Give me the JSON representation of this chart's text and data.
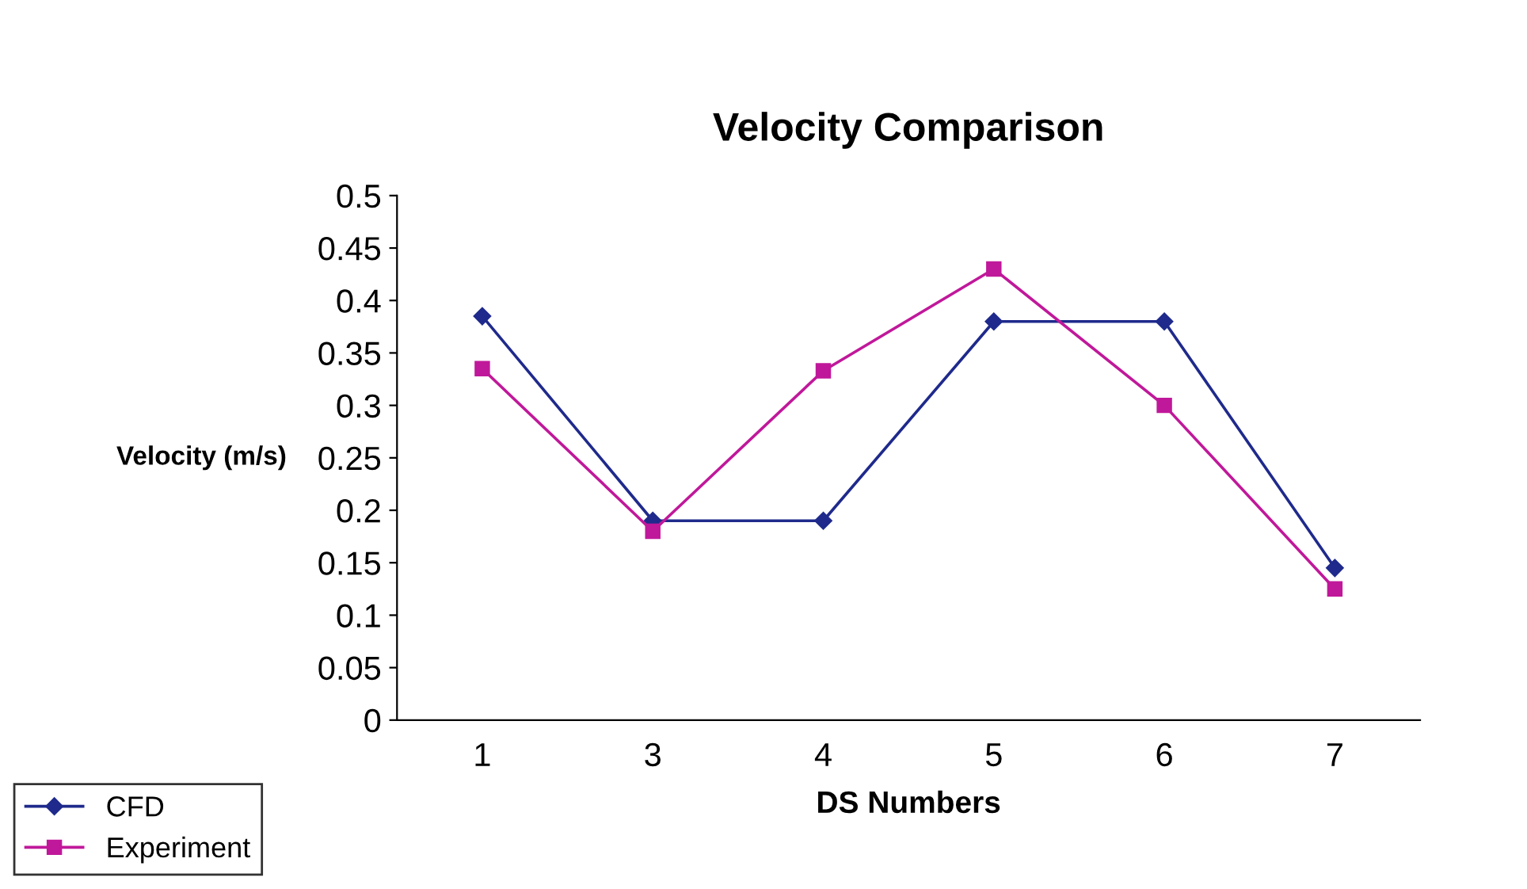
{
  "chart_data": {
    "type": "line",
    "title": "Velocity Comparison",
    "xlabel": "DS Numbers",
    "ylabel": "Velocity (m/s)",
    "categories": [
      "1",
      "3",
      "4",
      "5",
      "6",
      "7"
    ],
    "series": [
      {
        "name": "CFD",
        "color": "#1f2a8c",
        "marker": "diamond",
        "values": [
          0.385,
          0.19,
          0.19,
          0.38,
          0.38,
          0.145
        ]
      },
      {
        "name": "Experiment",
        "color": "#c0189a",
        "marker": "square",
        "values": [
          0.335,
          0.18,
          0.333,
          0.43,
          0.3,
          0.125
        ]
      }
    ],
    "ylim": [
      0,
      0.5
    ],
    "yticks": [
      {
        "value": 0,
        "label": "0"
      },
      0.05,
      0.1,
      0.15,
      0.2,
      0.25,
      0.3,
      0.35,
      0.4,
      0.45,
      0.5
    ],
    "grid": false,
    "legend": "bottom left",
    "line_style": "solid"
  }
}
